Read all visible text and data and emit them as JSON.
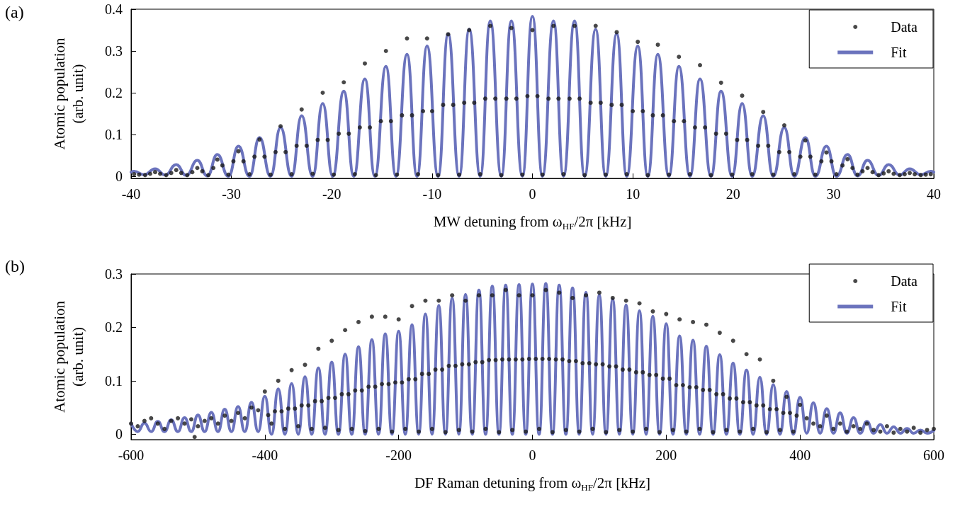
{
  "chart_data": [
    {
      "type": "scatter",
      "title": "(a)",
      "xlabel": "MW detuning from ω$_{HF}$/2π [kHz]",
      "ylabel": "Atomic population\n(arb. unit)",
      "xlim": [
        -40,
        40
      ],
      "xticks": [
        -40,
        -30,
        -20,
        -10,
        0,
        10,
        20,
        30,
        40
      ],
      "ylim": [
        -0.005,
        0.4
      ],
      "yticks": [
        0,
        0.1,
        0.2,
        0.3,
        0.4
      ],
      "legend": "top right",
      "series": [
        {
          "name": "Data",
          "type": "scatter",
          "color": "#1a1a1a",
          "marker": "circle",
          "x": [
            -39.7,
            -39.2,
            -38.6,
            -38.1,
            -37.6,
            -37.1,
            -36.5,
            -36,
            -35.5,
            -35,
            -34.4,
            -33.9,
            -33.4,
            -32.9,
            -32.3,
            -31.8,
            -31.4,
            -30.9,
            -30.3,
            -29.8,
            -29.3,
            -28.8,
            -28.2,
            -27.7,
            -27.2,
            -26.7,
            -26.1,
            -25.6,
            -25.1,
            -24.6,
            -24,
            -23.5,
            -23,
            -22.5,
            -21.9,
            -21.4,
            -20.9,
            -20.4,
            -19.8,
            -19.3,
            -18.8,
            -18.3,
            -17.7,
            -17.2,
            -16.7,
            -16.2,
            -15.6,
            -15.1,
            -14.6,
            -14.1,
            -13.5,
            -13,
            -12.5,
            -12,
            -11.4,
            -10.9,
            -10.5,
            -10,
            -9.4,
            -8.9,
            -8.4,
            -7.9,
            -7.3,
            -6.8,
            -6.3,
            -5.8,
            -5.2,
            -4.7,
            -4.2,
            -3.7,
            -3.1,
            -2.6,
            -2.1,
            -1.6,
            -1,
            -0.5,
            0,
            0.5,
            1,
            1.6,
            2.1,
            2.6,
            3.1,
            3.7,
            4.2,
            4.7,
            5.2,
            5.8,
            6.3,
            6.8,
            7.3,
            7.9,
            8.4,
            8.9,
            9.4,
            10,
            10.5,
            11,
            11.5,
            12,
            12.5,
            13,
            13.6,
            14.1,
            14.6,
            15.1,
            15.7,
            16.2,
            16.7,
            17.2,
            17.8,
            18.3,
            18.8,
            19.3,
            19.9,
            20.4,
            20.9,
            21.4,
            21.9,
            22.5,
            23,
            23.5,
            24,
            24.6,
            25.1,
            25.6,
            26.1,
            26.7,
            27.2,
            27.7,
            28.2,
            28.8,
            29.3,
            29.8,
            30.3,
            30.9,
            31.4,
            31.9,
            32.4,
            32.9,
            33.4,
            33.9,
            34.5,
            35,
            35.5,
            36,
            36.6,
            37.1,
            37.6,
            38.1,
            38.7,
            39.2,
            39.7
          ],
          "values": [
            0.005,
            0.004,
            0.003,
            0.006,
            0.01,
            0.006,
            0.003,
            0.008,
            0.015,
            0.008,
            0.003,
            0.01,
            0.02,
            0.012,
            0.003,
            0.02,
            0.04,
            0.026,
            0.004,
            0.036,
            0.06,
            0.036,
            0.005,
            0.047,
            0.088,
            0.047,
            0.004,
            0.058,
            0.12,
            0.058,
            0.005,
            0.073,
            0.16,
            0.073,
            0.006,
            0.087,
            0.2,
            0.087,
            0.004,
            0.102,
            0.225,
            0.102,
            0.005,
            0.117,
            0.27,
            0.117,
            0.003,
            0.132,
            0.3,
            0.132,
            0.004,
            0.146,
            0.33,
            0.146,
            0.005,
            0.156,
            0.33,
            0.156,
            0.003,
            0.171,
            0.34,
            0.171,
            0.004,
            0.176,
            0.35,
            0.176,
            0.005,
            0.186,
            0.36,
            0.186,
            0.003,
            0.186,
            0.355,
            0.186,
            0.004,
            0.192,
            0.35,
            0.192,
            0.004,
            0.186,
            0.36,
            0.186,
            0.005,
            0.186,
            0.36,
            0.186,
            0.003,
            0.176,
            0.36,
            0.176,
            0.004,
            0.171,
            0.345,
            0.171,
            0.005,
            0.156,
            0.322,
            0.156,
            0.003,
            0.146,
            0.315,
            0.146,
            0.004,
            0.132,
            0.286,
            0.132,
            0.005,
            0.117,
            0.266,
            0.117,
            0.003,
            0.102,
            0.224,
            0.102,
            0.004,
            0.087,
            0.193,
            0.087,
            0.005,
            0.073,
            0.154,
            0.073,
            0.004,
            0.058,
            0.122,
            0.058,
            0.005,
            0.047,
            0.086,
            0.047,
            0.004,
            0.036,
            0.057,
            0.036,
            0.005,
            0.026,
            0.041,
            0.02,
            0.004,
            0.012,
            0.02,
            0.01,
            0.003,
            0.007,
            0.012,
            0.006,
            0.003,
            0.005,
            0.008,
            0.005,
            0.003,
            0.004,
            0.005
          ]
        },
        {
          "name": "Fit",
          "type": "line",
          "color": "#6b73bd",
          "marker": "none",
          "line_style": "solid",
          "x": [
            -40,
            -39.7,
            -38.7,
            -37.6,
            -36.6,
            -35.5,
            -34.5,
            -33.4,
            -32.4,
            -31.4,
            -30.3,
            -29.3,
            -28.2,
            -27.2,
            -26.1,
            -25.1,
            -24,
            -23,
            -21.9,
            -20.9,
            -19.9,
            -18.8,
            -17.8,
            -16.7,
            -15.7,
            -14.6,
            -13.6,
            -12.5,
            -11.5,
            -10.5,
            -9.4,
            -8.4,
            -7.3,
            -6.3,
            -5.2,
            -4.2,
            -3.1,
            -2.1,
            -1,
            0,
            1,
            2.1,
            3.1,
            4.2,
            5.2,
            6.3,
            7.3,
            8.4,
            9.4,
            10.5,
            11.5,
            12.5,
            13.6,
            14.6,
            15.7,
            16.7,
            17.8,
            18.8,
            19.9,
            20.9,
            21.9,
            23,
            24,
            25.1,
            26.1,
            27.2,
            28.2,
            29.3,
            30.3,
            31.4,
            32.4,
            33.4,
            34.5,
            35.5,
            36.6,
            37.6,
            38.7,
            39.7,
            40
          ],
          "values": [
            0.01,
            0.012,
            0.004,
            0.018,
            0.003,
            0.028,
            0.002,
            0.038,
            0.001,
            0.052,
            0,
            0.072,
            0,
            0.093,
            0,
            0.117,
            0,
            0.145,
            0,
            0.174,
            0,
            0.204,
            0,
            0.233,
            0,
            0.263,
            0,
            0.292,
            0,
            0.312,
            0,
            0.341,
            0,
            0.352,
            0,
            0.372,
            0,
            0.372,
            0,
            0.383,
            0,
            0.372,
            0,
            0.372,
            0,
            0.352,
            0,
            0.341,
            0,
            0.312,
            0,
            0.292,
            0,
            0.263,
            0,
            0.233,
            0,
            0.204,
            0,
            0.174,
            0,
            0.145,
            0,
            0.117,
            0,
            0.093,
            0,
            0.072,
            0,
            0.052,
            0.001,
            0.038,
            0.002,
            0.028,
            0.003,
            0.018,
            0.004,
            0.012,
            0.01
          ]
        }
      ]
    },
    {
      "type": "scatter",
      "title": "(b)",
      "xlabel": "DF Raman detuning from ω$_{HF}$/2π [kHz]",
      "ylabel": "Atomic population\n(arb. unit)",
      "xlim": [
        -600,
        600
      ],
      "xticks": [
        -600,
        -400,
        -200,
        0,
        200,
        400,
        600
      ],
      "ylim": [
        -0.01,
        0.3
      ],
      "yticks": [
        0,
        0.1,
        0.2,
        0.3
      ],
      "legend": "top right",
      "series": [
        {
          "name": "Data",
          "type": "scatter",
          "color": "#1a1a1a",
          "marker": "circle",
          "x": [
            -600,
            -590,
            -580,
            -570,
            -560,
            -550,
            -540,
            -530,
            -520,
            -510,
            -505,
            -500,
            -490,
            -480,
            -470,
            -460,
            -450,
            -440,
            -430,
            -420,
            -410,
            -400,
            -395,
            -390,
            -385,
            -380,
            -375,
            -370,
            -365,
            -360,
            -355,
            -350,
            -345,
            -340,
            -335,
            -330,
            -325,
            -320,
            -315,
            -310,
            -305,
            -300,
            -295,
            -290,
            -285,
            -280,
            -275,
            -270,
            -265,
            -260,
            -255,
            -250,
            -245,
            -240,
            -235,
            -230,
            -225,
            -220,
            -215,
            -210,
            -205,
            -200,
            -195,
            -190,
            -185,
            -180,
            -175,
            -170,
            -165,
            -160,
            -155,
            -150,
            -145,
            -140,
            -135,
            -130,
            -125,
            -120,
            -115,
            -110,
            -105,
            -100,
            -95,
            -90,
            -85,
            -80,
            -75,
            -70,
            -65,
            -60,
            -55,
            -50,
            -45,
            -40,
            -35,
            -30,
            -25,
            -20,
            -15,
            -10,
            -5,
            0,
            5,
            10,
            15,
            20,
            25,
            30,
            35,
            40,
            45,
            50,
            55,
            60,
            65,
            70,
            75,
            80,
            85,
            90,
            95,
            100,
            105,
            110,
            115,
            120,
            125,
            130,
            135,
            140,
            145,
            150,
            155,
            160,
            165,
            170,
            175,
            180,
            185,
            190,
            195,
            200,
            205,
            210,
            215,
            220,
            225,
            230,
            235,
            240,
            245,
            250,
            255,
            260,
            265,
            270,
            275,
            280,
            285,
            290,
            295,
            300,
            305,
            310,
            315,
            320,
            325,
            330,
            335,
            340,
            345,
            350,
            355,
            360,
            365,
            370,
            375,
            380,
            385,
            390,
            395,
            400,
            410,
            420,
            430,
            440,
            450,
            460,
            470,
            480,
            490,
            500,
            510,
            520,
            530,
            540,
            550,
            560,
            570,
            580,
            590,
            600
          ],
          "values": [
            0.02,
            0.015,
            0.025,
            0.03,
            0.02,
            0.01,
            0.025,
            0.03,
            0.02,
            0.028,
            -0.005,
            0.015,
            0.025,
            0.03,
            0.02,
            0.035,
            0.025,
            0.04,
            0.03,
            0.05,
            0.045,
            0.08,
            0.036,
            0.02,
            0.043,
            0.1,
            0.043,
            0.01,
            0.048,
            0.12,
            0.048,
            0.015,
            0.054,
            0.13,
            0.054,
            0.01,
            0.062,
            0.16,
            0.062,
            0.012,
            0.068,
            0.175,
            0.068,
            0.008,
            0.075,
            0.195,
            0.075,
            0.01,
            0.082,
            0.21,
            0.082,
            0.006,
            0.089,
            0.22,
            0.089,
            0.01,
            0.094,
            0.22,
            0.094,
            0.005,
            0.097,
            0.215,
            0.097,
            0.01,
            0.103,
            0.24,
            0.103,
            0.005,
            0.113,
            0.25,
            0.113,
            0.01,
            0.121,
            0.25,
            0.121,
            0.004,
            0.128,
            0.26,
            0.128,
            0.008,
            0.131,
            0.25,
            0.131,
            0.005,
            0.135,
            0.26,
            0.135,
            0.01,
            0.139,
            0.26,
            0.139,
            0.004,
            0.14,
            0.27,
            0.14,
            0.008,
            0.14,
            0.26,
            0.14,
            0.005,
            0.141,
            0.26,
            0.141,
            0.01,
            0.141,
            0.27,
            0.141,
            0.004,
            0.14,
            0.265,
            0.14,
            0.008,
            0.137,
            0.255,
            0.137,
            0.005,
            0.133,
            0.26,
            0.133,
            0.01,
            0.131,
            0.265,
            0.131,
            0.004,
            0.127,
            0.255,
            0.127,
            0.008,
            0.121,
            0.25,
            0.121,
            0.005,
            0.116,
            0.245,
            0.116,
            0.01,
            0.111,
            0.23,
            0.111,
            0.004,
            0.104,
            0.225,
            0.104,
            0.008,
            0.092,
            0.215,
            0.092,
            0.005,
            0.088,
            0.21,
            0.088,
            0.01,
            0.083,
            0.205,
            0.083,
            0.004,
            0.075,
            0.19,
            0.075,
            0.008,
            0.067,
            0.175,
            0.067,
            0.005,
            0.06,
            0.15,
            0.06,
            0.01,
            0.054,
            0.14,
            0.054,
            0.004,
            0.047,
            0.1,
            0.047,
            0.008,
            0.04,
            0.07,
            0.04,
            0.005,
            0.035,
            0.055,
            0.03,
            0.02,
            0.015,
            0.035,
            0.01,
            0.02,
            0.005,
            0.015,
            0.01,
            0.02,
            0.008,
            0.005,
            0.015,
            0.003,
            0.01,
            0.005,
            0.012,
            0.003,
            0.008,
            0.01
          ]
        },
        {
          "name": "Fit",
          "type": "line",
          "color": "#6b73bd",
          "marker": "none",
          "line_style": "solid",
          "x": [
            -600,
            -590,
            -580,
            -570,
            -560,
            -550,
            -540,
            -530,
            -520,
            -510,
            -500,
            -490,
            -480,
            -470,
            -460,
            -450,
            -440,
            -430,
            -420,
            -410,
            -400,
            -390,
            -380,
            -370,
            -360,
            -350,
            -340,
            -330,
            -320,
            -310,
            -300,
            -290,
            -280,
            -270,
            -260,
            -250,
            -240,
            -230,
            -220,
            -210,
            -200,
            -190,
            -180,
            -170,
            -160,
            -150,
            -140,
            -130,
            -120,
            -110,
            -100,
            -90,
            -80,
            -70,
            -60,
            -50,
            -40,
            -30,
            -20,
            -10,
            0,
            10,
            20,
            30,
            40,
            50,
            60,
            70,
            80,
            90,
            100,
            110,
            120,
            130,
            140,
            150,
            160,
            170,
            180,
            190,
            200,
            210,
            220,
            230,
            240,
            250,
            260,
            270,
            280,
            290,
            300,
            310,
            320,
            330,
            340,
            350,
            360,
            370,
            380,
            390,
            400,
            410,
            420,
            430,
            440,
            450,
            460,
            470,
            480,
            490,
            500,
            510,
            520,
            530,
            540,
            550,
            560,
            570,
            580,
            590,
            600
          ],
          "values": [
            0.02,
            0.005,
            0.021,
            0.005,
            0.024,
            0.005,
            0.027,
            0.005,
            0.031,
            0.005,
            0.036,
            0.005,
            0.041,
            0.005,
            0.047,
            0.005,
            0.052,
            0.005,
            0.06,
            0.005,
            0.071,
            0,
            0.085,
            0,
            0.095,
            0,
            0.108,
            0,
            0.124,
            0,
            0.135,
            0,
            0.15,
            0,
            0.164,
            0,
            0.177,
            0,
            0.188,
            0,
            0.193,
            0,
            0.205,
            0,
            0.225,
            0,
            0.241,
            0,
            0.255,
            0,
            0.262,
            0,
            0.27,
            0,
            0.277,
            0,
            0.279,
            0,
            0.28,
            0,
            0.281,
            0,
            0.282,
            0,
            0.279,
            0,
            0.274,
            0,
            0.266,
            0,
            0.261,
            0,
            0.253,
            0,
            0.242,
            0,
            0.231,
            0,
            0.221,
            0,
            0.207,
            0,
            0.184,
            0,
            0.176,
            0,
            0.165,
            0,
            0.149,
            0,
            0.133,
            0,
            0.12,
            0,
            0.107,
            0,
            0.093,
            0,
            0.08,
            0,
            0.069,
            0.002,
            0.059,
            0.002,
            0.048,
            0.002,
            0.04,
            0.002,
            0.031,
            0.002,
            0.024,
            0.002,
            0.018,
            0.002,
            0.014,
            0.002,
            0.011,
            0.002,
            0.008,
            0.002,
            0.007
          ]
        }
      ]
    }
  ]
}
